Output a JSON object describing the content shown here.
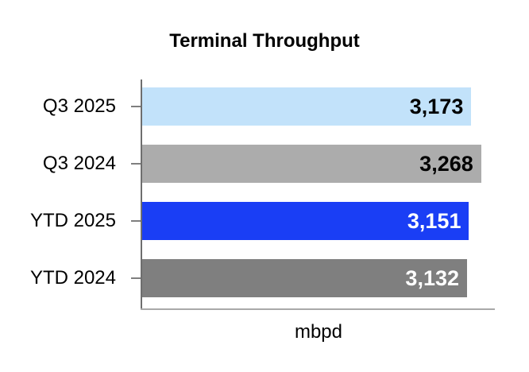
{
  "chart_data": {
    "type": "bar",
    "orientation": "horizontal",
    "title": "Terminal Throughput",
    "xlabel": "mbpd",
    "categories": [
      "Q3 2025",
      "Q3 2024",
      "YTD 2025",
      "YTD 2024"
    ],
    "values": [
      3173,
      3268,
      3151,
      3132
    ],
    "value_labels": [
      "3,173",
      "3,268",
      "3,151",
      "3,132"
    ],
    "bar_colors": [
      "#C2E2FA",
      "#ACACAC",
      "#1A3EF5",
      "#7F7F7F"
    ],
    "value_label_colors": [
      "#000000",
      "#000000",
      "#FFFFFF",
      "#FFFFFF"
    ],
    "xlim": [
      0,
      3400
    ],
    "grid": false,
    "legend": false,
    "axis_colors": {
      "y_axis_line": "#6E6E6E",
      "x_axis_line": "#A9A9A9",
      "tick": "#7F7F7F"
    }
  }
}
